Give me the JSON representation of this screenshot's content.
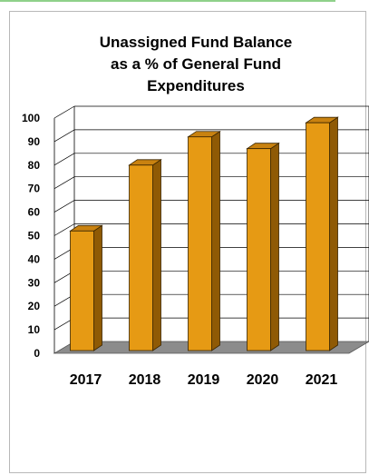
{
  "colors": {
    "bar_front": "#e69a14",
    "bar_side": "#8f5a05",
    "bar_top": "#c98210",
    "floor": "#8c8c8c",
    "grid": "#000000"
  },
  "chart_data": {
    "type": "bar",
    "title_lines": [
      "Unassigned Fund Balance",
      "as a % of General Fund",
      "Expenditures"
    ],
    "categories": [
      "2017",
      "2018",
      "2019",
      "2020",
      "2021"
    ],
    "values": [
      52,
      80,
      92,
      87,
      98
    ],
    "ylim": [
      0,
      100
    ],
    "yticks": [
      0,
      10,
      20,
      30,
      40,
      50,
      60,
      70,
      80,
      90,
      100
    ],
    "xlabel": "",
    "ylabel": "",
    "grid": true,
    "legend": "none",
    "style": "3d-bar"
  }
}
